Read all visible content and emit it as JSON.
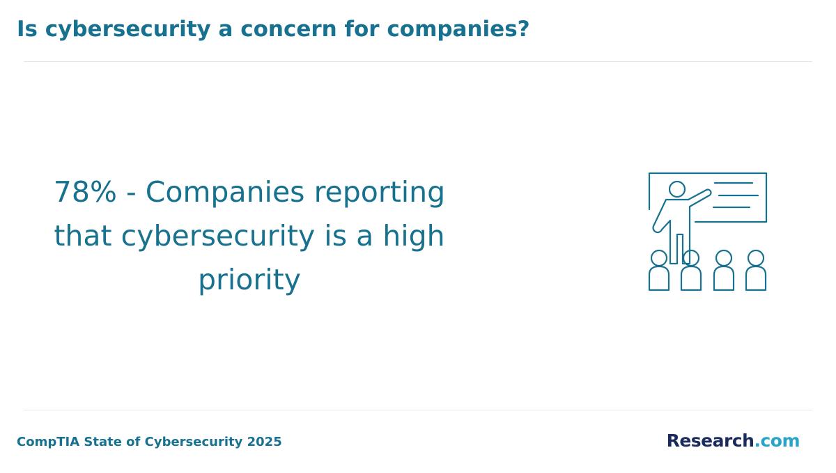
{
  "header": {
    "title": "Is cybersecurity a concern for companies?"
  },
  "stat": {
    "text": "78% - Companies reporting that cybersecurity is a high priority"
  },
  "illustration": {
    "icon": "presentation-classroom-icon",
    "color": "#17718f"
  },
  "footer": {
    "source": "CompTIA State of Cybersecurity 2025",
    "logo_part1": "Research",
    "logo_part2": ".com"
  },
  "colors": {
    "accent": "#17718f",
    "logo_dark": "#1b2a5c",
    "logo_light": "#2aa3c8",
    "divider": "#e5e5e5"
  }
}
